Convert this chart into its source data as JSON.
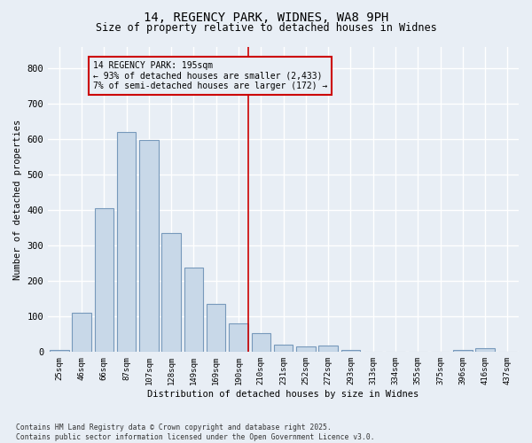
{
  "title1": "14, REGENCY PARK, WIDNES, WA8 9PH",
  "title2": "Size of property relative to detached houses in Widnes",
  "xlabel": "Distribution of detached houses by size in Widnes",
  "ylabel": "Number of detached properties",
  "bar_labels": [
    "25sqm",
    "46sqm",
    "66sqm",
    "87sqm",
    "107sqm",
    "128sqm",
    "149sqm",
    "169sqm",
    "190sqm",
    "210sqm",
    "231sqm",
    "252sqm",
    "272sqm",
    "293sqm",
    "313sqm",
    "334sqm",
    "355sqm",
    "375sqm",
    "396sqm",
    "416sqm",
    "437sqm"
  ],
  "bar_values": [
    5,
    110,
    405,
    620,
    598,
    335,
    238,
    135,
    80,
    53,
    22,
    15,
    18,
    5,
    0,
    0,
    0,
    0,
    7,
    10,
    0
  ],
  "bar_color": "#c8d8e8",
  "bar_edge_color": "#7799bb",
  "background_color": "#e8eef5",
  "grid_color": "#ffffff",
  "vline_color": "#cc0000",
  "annotation_text": "14 REGENCY PARK: 195sqm\n← 93% of detached houses are smaller (2,433)\n7% of semi-detached houses are larger (172) →",
  "ylim": [
    0,
    860
  ],
  "yticks": [
    0,
    100,
    200,
    300,
    400,
    500,
    600,
    700,
    800
  ],
  "footnote1": "Contains HM Land Registry data © Crown copyright and database right 2025.",
  "footnote2": "Contains public sector information licensed under the Open Government Licence v3.0."
}
